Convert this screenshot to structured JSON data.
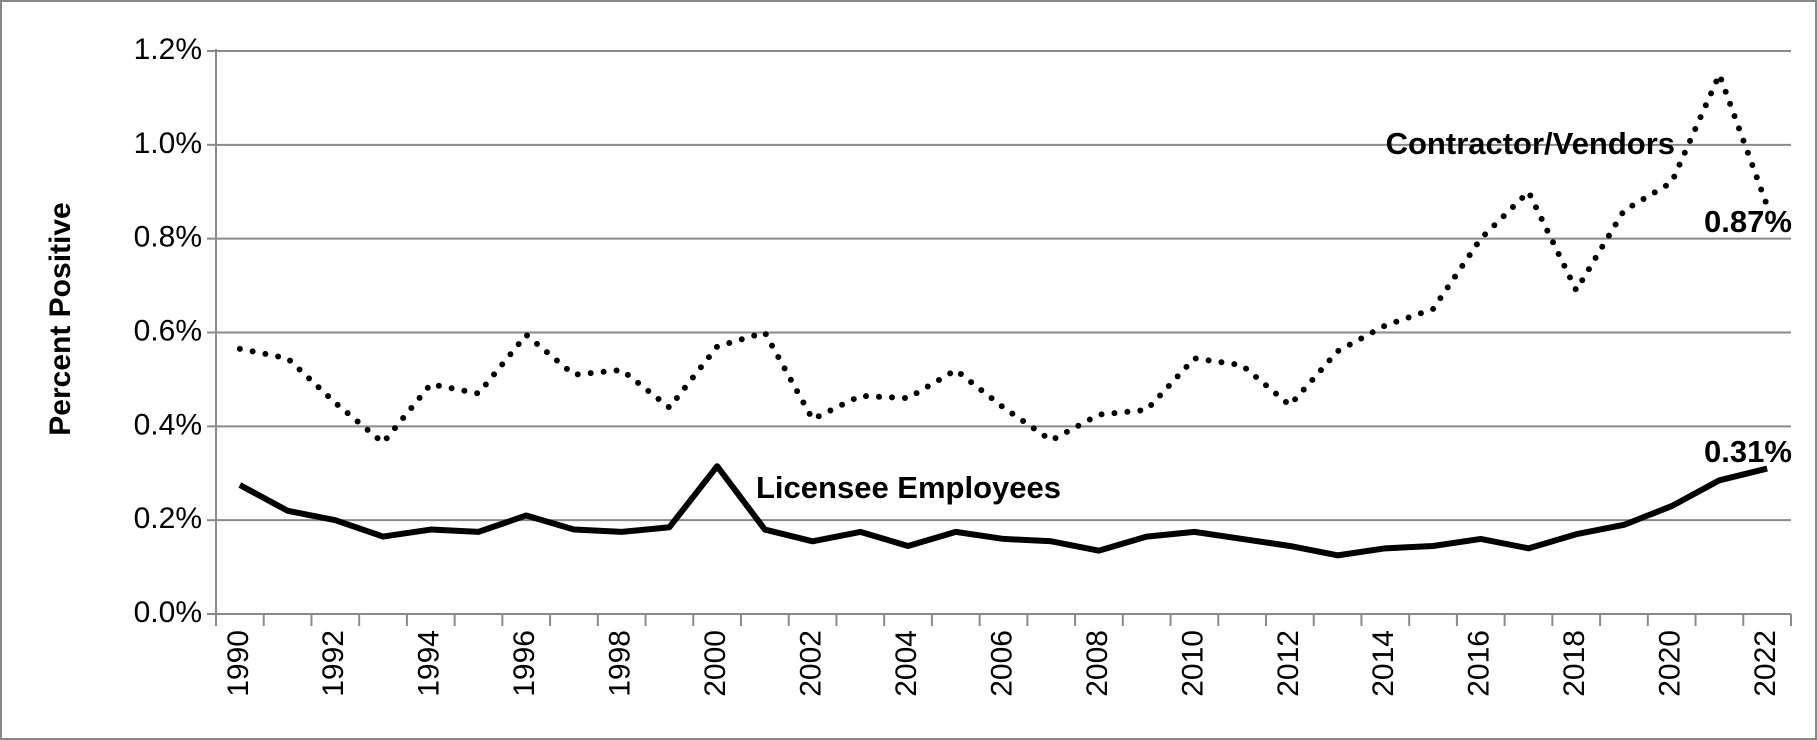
{
  "chart_data": {
    "type": "line",
    "y_label": "Percent Positive",
    "categories": [
      "1990",
      null,
      "1992",
      null,
      "1994",
      null,
      "1996",
      null,
      "1998",
      null,
      "2000",
      null,
      "2002",
      null,
      "2004",
      null,
      "2006",
      null,
      "2008",
      null,
      "2010",
      null,
      "2012",
      null,
      "2014",
      null,
      "2016",
      null,
      "2018",
      null,
      "2020",
      null,
      "2022"
    ],
    "series": [
      {
        "name": "Contractor/Vendors",
        "color": "#000000",
        "dash": "dotted",
        "values": [
          0.565,
          0.545,
          0.45,
          0.365,
          0.49,
          0.47,
          0.595,
          0.51,
          0.52,
          0.44,
          0.57,
          0.6,
          0.415,
          0.465,
          0.46,
          0.52,
          0.44,
          0.37,
          0.425,
          0.435,
          0.545,
          0.53,
          0.445,
          0.56,
          0.615,
          0.65,
          0.8,
          0.9,
          0.69,
          0.86,
          0.92,
          1.15,
          0.87
        ],
        "value_labels": [
          null,
          null,
          null,
          null,
          null,
          null,
          null,
          null,
          null,
          null,
          null,
          null,
          null,
          null,
          null,
          null,
          null,
          null,
          null,
          null,
          null,
          null,
          null,
          null,
          null,
          null,
          null,
          null,
          null,
          null,
          null,
          null,
          "0.87%"
        ]
      },
      {
        "name": "Licensee Employees",
        "color": "#000000",
        "dash": "solid",
        "values": [
          0.275,
          0.22,
          0.2,
          0.165,
          0.18,
          0.175,
          0.21,
          0.18,
          0.175,
          0.185,
          0.315,
          0.18,
          0.155,
          0.175,
          0.145,
          0.175,
          0.16,
          0.155,
          0.135,
          0.165,
          0.175,
          0.16,
          0.145,
          0.125,
          0.14,
          0.145,
          0.16,
          0.14,
          0.17,
          0.19,
          0.23,
          0.285,
          0.31
        ],
        "value_labels": [
          null,
          null,
          null,
          null,
          null,
          null,
          null,
          null,
          null,
          null,
          null,
          null,
          null,
          null,
          null,
          null,
          null,
          null,
          null,
          null,
          null,
          null,
          null,
          null,
          null,
          null,
          null,
          null,
          null,
          null,
          null,
          null,
          "0.31%"
        ]
      }
    ],
    "ylim": [
      0,
      1.2
    ],
    "yticks": [
      {
        "value": 0,
        "label": "0.0%"
      },
      {
        "value": 0.2,
        "label": "0.2%"
      },
      {
        "value": 0.4,
        "label": "0.4%"
      },
      {
        "value": 0.6,
        "label": "0.6%"
      },
      {
        "value": 0.8,
        "label": "0.8%"
      },
      {
        "value": 1.0,
        "label": "1.0%"
      },
      {
        "value": 1.2,
        "label": "1.2%"
      }
    ],
    "grid": true
  }
}
